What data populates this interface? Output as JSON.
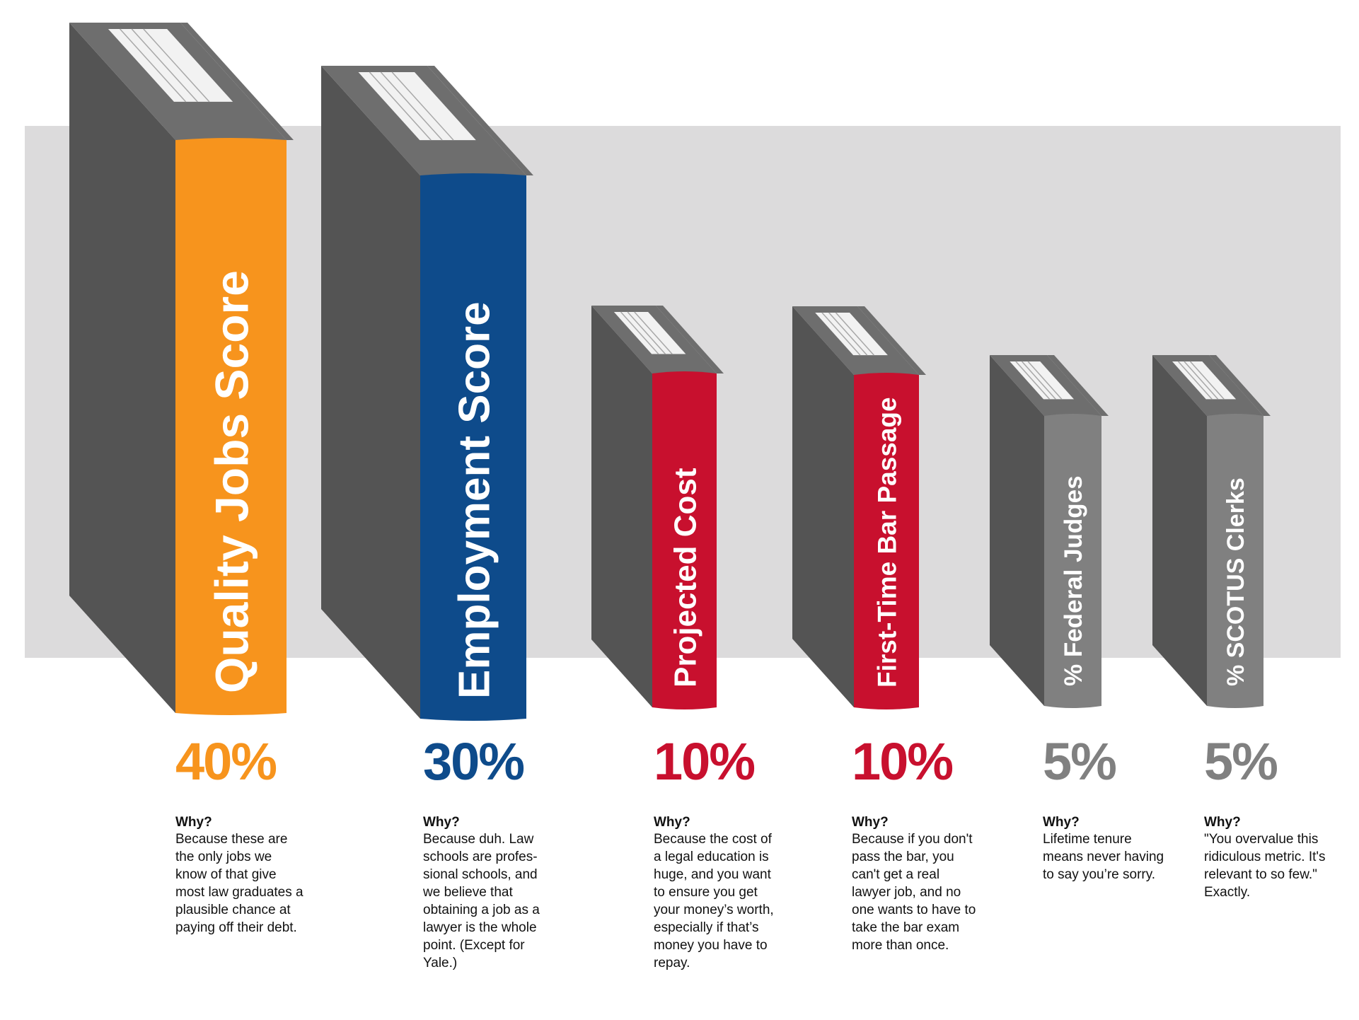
{
  "chart_data": {
    "type": "bar",
    "title": "",
    "categories": [
      "Quality Jobs Score",
      "Employment Score",
      "Projected Cost",
      "First-Time Bar Passage",
      "% Federal Judges",
      "% SCOTUS Clerks"
    ],
    "values": [
      40,
      30,
      10,
      10,
      5,
      5
    ],
    "value_labels": [
      "40%",
      "30%",
      "10%",
      "10%",
      "5%",
      "5%"
    ],
    "colors": [
      "#F7941D",
      "#0E4B8B",
      "#C8102E",
      "#C8102E",
      "#808080",
      "#808080"
    ],
    "grid": false,
    "legend": "none"
  },
  "notes": [
    {
      "heading": "Why?",
      "text": "Because these are\nthe only jobs we\nknow of that give\nmost law graduates a\nplausible chance at\npaying off their debt."
    },
    {
      "heading": "Why?",
      "text": "Because duh. Law\nschools are profes-\nsional schools, and\nwe believe that\nobtaining a job as a\nlawyer is the whole\npoint. (Except for\nYale.)"
    },
    {
      "heading": "Why?",
      "text": "Because the cost of\na legal education is\nhuge, and you want\nto ensure you get\nyour money’s worth,\nespecially if that’s\nmoney you have to\nrepay."
    },
    {
      "heading": "Why?",
      "text": "Because if you don't\npass the bar, you\ncan't get a real\nlawyer job, and no\none wants to have to\ntake the bar exam\nmore than once."
    },
    {
      "heading": "Why?",
      "text": "Lifetime tenure\nmeans never having\nto say you’re sorry."
    },
    {
      "heading": "Why?",
      "text": "\"You overvalue this\nridiculous metric. It's\nrelevant to so few.\"\nExactly."
    }
  ],
  "style": {
    "backdrop": "#DCDBDC",
    "cover": "#545454",
    "cover_edge": "#6E6E6E",
    "pages": "#F2F2F2",
    "page_lines": "#A8A8A8",
    "spine_text": "#FFFFFF"
  }
}
